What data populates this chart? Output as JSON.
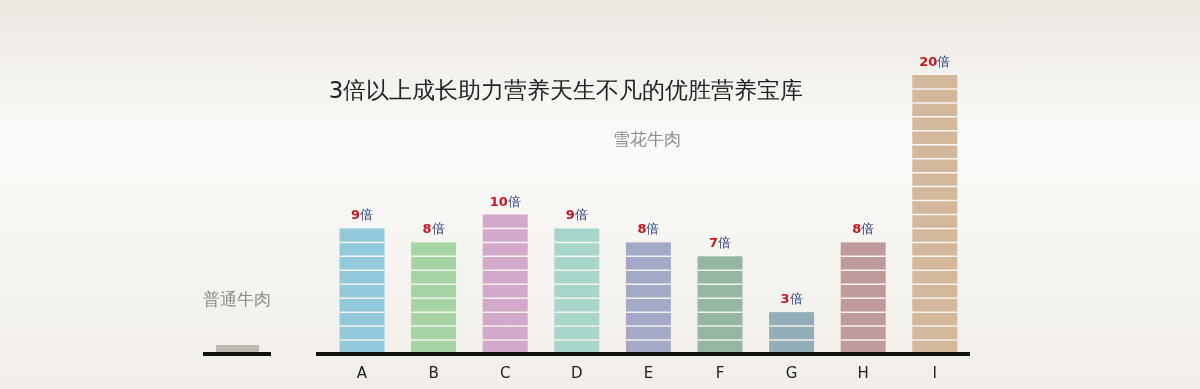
{
  "chart_data": {
    "type": "bar",
    "title": "3倍以上成长助力营养天生不凡的优胜营养宝库",
    "subtitle": "雪花牛肉",
    "annotations": [
      "普通牛肉"
    ],
    "categories": [
      "A",
      "B",
      "C",
      "D",
      "E",
      "F",
      "G",
      "H",
      "I"
    ],
    "values": [
      9,
      8,
      10,
      9,
      8,
      7,
      3,
      8,
      20
    ],
    "colors": [
      "#92c9dc",
      "#a6d4a4",
      "#d3a9c9",
      "#a9d6ca",
      "#a3a9c6",
      "#95b6a2",
      "#93aeb6",
      "#bf9a9a",
      "#d4b89c"
    ],
    "value_labels": [
      "9倍",
      "8倍",
      "10倍",
      "9倍",
      "8倍",
      "7倍",
      "3倍",
      "8倍",
      "20倍"
    ]
  }
}
